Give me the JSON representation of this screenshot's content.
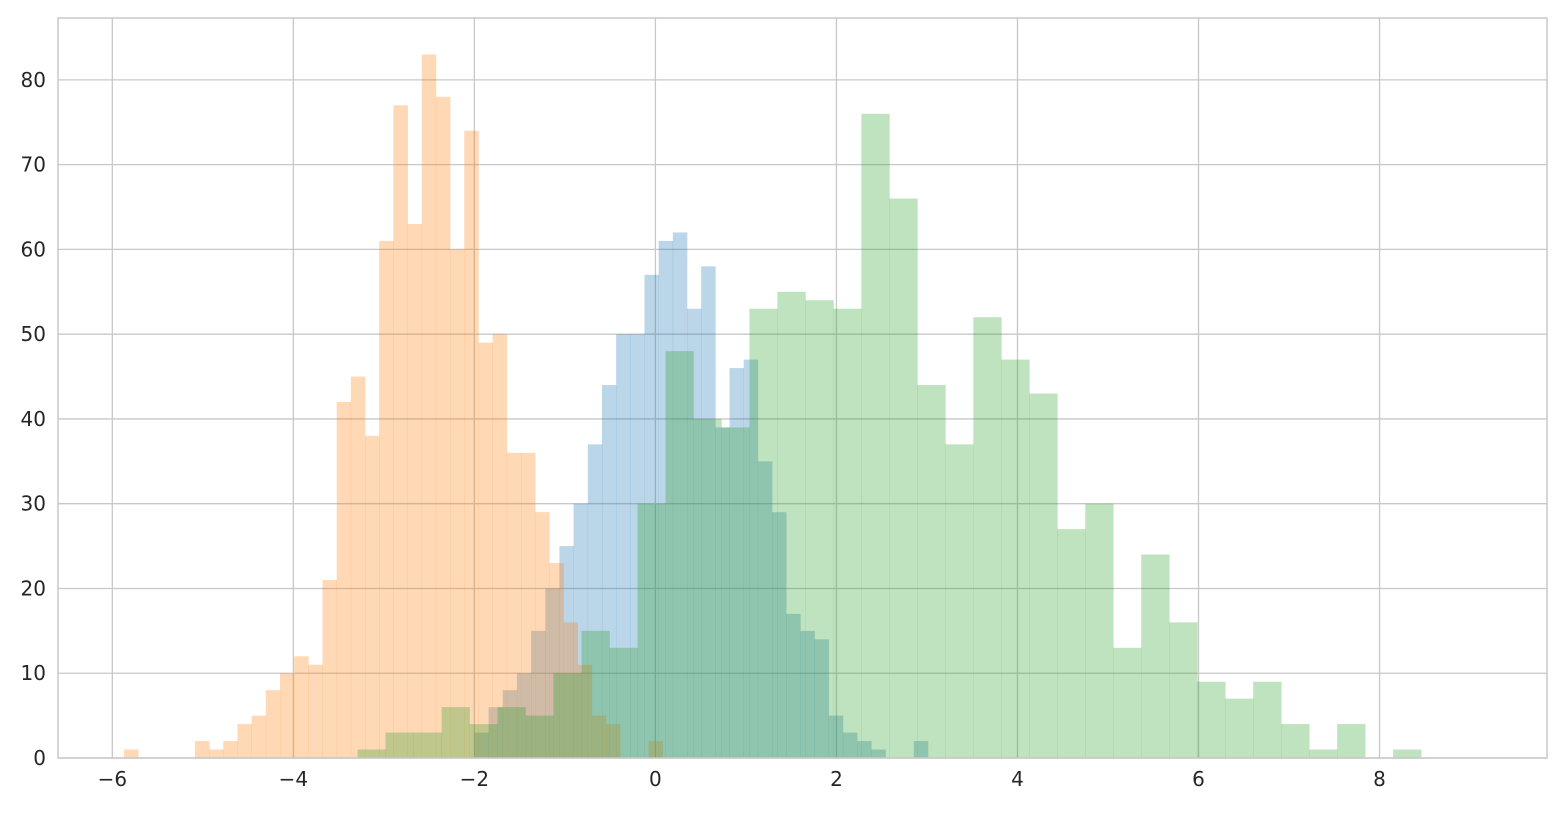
{
  "chart_data": {
    "type": "bar",
    "title": "",
    "xlabel": "",
    "ylabel": "",
    "xlim": [
      -6.6,
      9.85
    ],
    "ylim": [
      0,
      87.3
    ],
    "grid": true,
    "legend": "none",
    "x_ticks": [
      -6,
      -4,
      -2,
      0,
      2,
      4,
      6,
      8
    ],
    "x_tick_labels": [
      "−6",
      "−4",
      "−2",
      "0",
      "2",
      "4",
      "6",
      "8"
    ],
    "y_ticks": [
      0,
      10,
      20,
      30,
      40,
      50,
      60,
      70,
      80
    ],
    "y_tick_labels": [
      "0",
      "10",
      "20",
      "30",
      "40",
      "50",
      "60",
      "70",
      "80"
    ],
    "series": [
      {
        "color": "#1f77b4",
        "opacity": 0.3,
        "bin_start": -2.0,
        "bin_width": 0.1566,
        "counts": [
          3,
          6,
          8,
          10,
          15,
          20,
          25,
          30,
          37,
          44,
          50,
          50,
          57,
          61,
          62,
          53,
          58,
          39,
          46,
          47,
          35,
          29,
          17,
          15,
          14,
          5,
          3,
          2,
          1,
          0,
          0,
          2
        ]
      },
      {
        "color": "#ff7f0e",
        "opacity": 0.3,
        "bin_start": -5.87,
        "bin_width": 0.1566,
        "counts": [
          1,
          0,
          0,
          0,
          0,
          2,
          1,
          2,
          4,
          5,
          8,
          10,
          12,
          11,
          21,
          42,
          45,
          38,
          61,
          77,
          63,
          83,
          78,
          60,
          74,
          49,
          50,
          36,
          36,
          29,
          23,
          16,
          11,
          5,
          4,
          0,
          0,
          2
        ]
      },
      {
        "color": "#2ca02c",
        "opacity": 0.3,
        "bin_start": -3.29,
        "bin_width": 0.3092,
        "counts": [
          1,
          3,
          3,
          6,
          4,
          6,
          5,
          10,
          15,
          13,
          30,
          48,
          40,
          39,
          53,
          55,
          54,
          53,
          76,
          66,
          44,
          37,
          52,
          47,
          43,
          27,
          30,
          13,
          24,
          16,
          9,
          7,
          9,
          4,
          1,
          4,
          0,
          1
        ]
      }
    ]
  }
}
